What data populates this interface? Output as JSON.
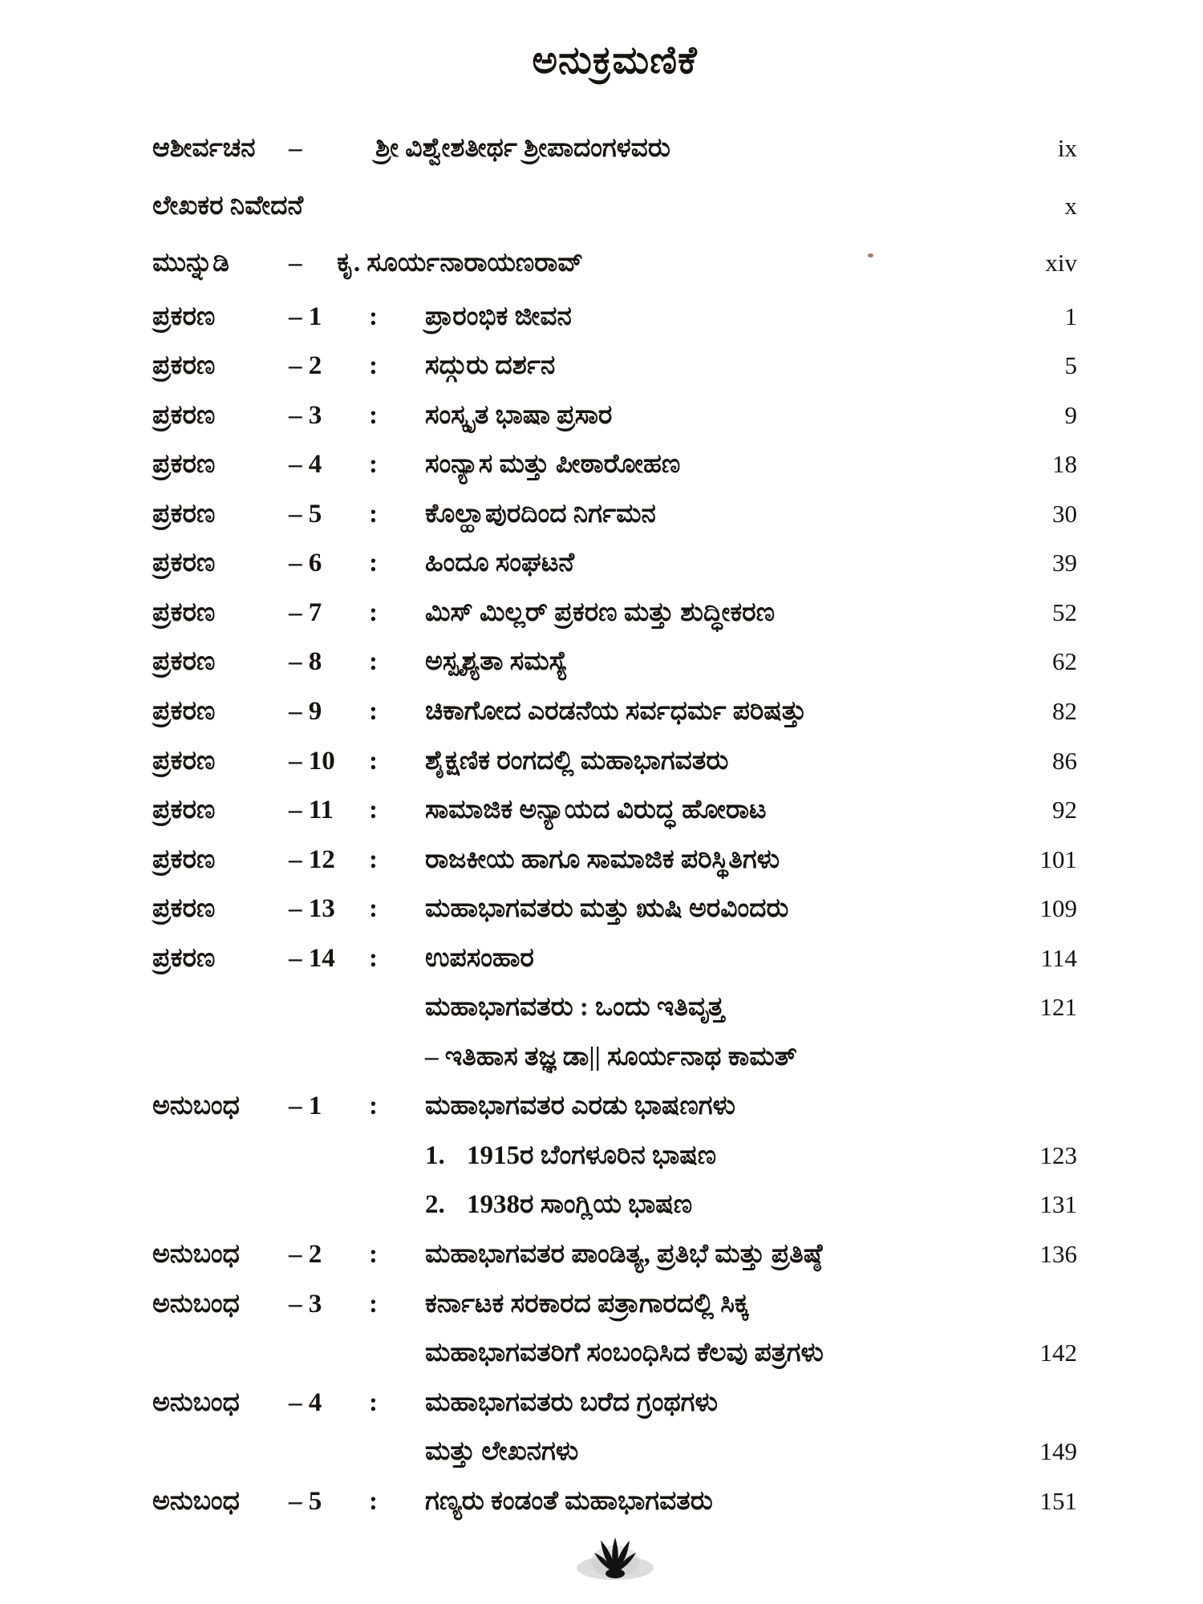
{
  "page": {
    "title": "ಅನುಕ್ರಮಣಿಕೆ"
  },
  "icons": {
    "bottom_ornament": "lotus-flower-ornament"
  },
  "colors": {
    "ink": "#17130f",
    "paper": "#ffffff"
  },
  "toc": {
    "rows": [
      {
        "style": "front-wide",
        "label": "ಆಶೀರ್ವಚನ",
        "num": "–",
        "title": "ಶ್ರೀ ವಿಶ್ವೇಶತೀರ್ಥ ಶ್ರೀಪಾದಂಗಳವರು",
        "page": "ix"
      },
      {
        "style": "plain",
        "label": "ಲೇಖಕರ ನಿವೇದನೆ",
        "page": "x"
      },
      {
        "style": "front",
        "label": "ಮುನ್ನುಡಿ",
        "num": "–",
        "title": "ಕೃ. ಸೂರ್ಯನಾರಾಯಣರಾವ್",
        "page": "xiv"
      },
      {
        "style": "chapter",
        "label": "ಪ್ರಕರಣ",
        "num": "– 1",
        "colon": ":",
        "title": "ಪ್ರಾರಂಭಿಕ ಜೀವನ",
        "page": "1"
      },
      {
        "style": "chapter",
        "label": "ಪ್ರಕರಣ",
        "num": "– 2",
        "colon": ":",
        "title": "ಸದ್ಗುರು ದರ್ಶನ",
        "page": "5"
      },
      {
        "style": "chapter",
        "label": "ಪ್ರಕರಣ",
        "num": "– 3",
        "colon": ":",
        "title": "ಸಂಸ್ಕೃತ ಭಾಷಾ ಪ್ರಸಾರ",
        "page": "9"
      },
      {
        "style": "chapter",
        "label": "ಪ್ರಕರಣ",
        "num": "– 4",
        "colon": ":",
        "title": "ಸಂನ್ಯಾಸ ಮತ್ತು ಪೀಠಾರೋಹಣ",
        "page": "18"
      },
      {
        "style": "chapter",
        "label": "ಪ್ರಕರಣ",
        "num": "– 5",
        "colon": ":",
        "title": "ಕೊಲ್ಹಾಪುರದಿಂದ ನಿರ್ಗಮನ",
        "page": "30"
      },
      {
        "style": "chapter",
        "label": "ಪ್ರಕರಣ",
        "num": "– 6",
        "colon": ":",
        "title": "ಹಿಂದೂ ಸಂಘಟನೆ",
        "page": "39"
      },
      {
        "style": "chapter",
        "label": "ಪ್ರಕರಣ",
        "num": "– 7",
        "colon": ":",
        "title": "ಮಿಸ್ ಮಿಲ್ಲರ್ ಪ್ರಕರಣ ಮತ್ತು ಶುದ್ಧೀಕರಣ",
        "page": "52"
      },
      {
        "style": "chapter",
        "label": "ಪ್ರಕರಣ",
        "num": "– 8",
        "colon": ":",
        "title": "ಅಸ್ಪೃಶ್ಯತಾ ಸಮಸ್ಯೆ",
        "page": "62"
      },
      {
        "style": "chapter",
        "label": "ಪ್ರಕರಣ",
        "num": "– 9",
        "colon": ":",
        "title": "ಚಿಕಾಗೋದ ಎರಡನೆಯ ಸರ್ವಧರ್ಮ ಪರಿಷತ್ತು",
        "page": "82"
      },
      {
        "style": "chapter",
        "label": "ಪ್ರಕರಣ",
        "num": "– 10",
        "colon": ":",
        "title": "ಶೈಕ್ಷಣಿಕ ರಂಗದಲ್ಲಿ ಮಹಾಭಾಗವತರು",
        "page": "86"
      },
      {
        "style": "chapter",
        "label": "ಪ್ರಕರಣ",
        "num": "– 11",
        "colon": ":",
        "title": "ಸಾಮಾಜಿಕ ಅನ್ಯಾಯದ ವಿರುದ್ಧ ಹೋರಾಟ",
        "page": "92"
      },
      {
        "style": "chapter",
        "label": "ಪ್ರಕರಣ",
        "num": "– 12",
        "colon": ":",
        "title": "ರಾಜಕೀಯ ಹಾಗೂ ಸಾಮಾಜಿಕ ಪರಿಸ್ಥಿತಿಗಳು",
        "page": "101"
      },
      {
        "style": "chapter",
        "label": "ಪ್ರಕರಣ",
        "num": "– 13",
        "colon": ":",
        "title": "ಮಹಾಭಾಗವತರು ಮತ್ತು ಋಷಿ ಅರವಿಂದರು",
        "page": "109"
      },
      {
        "style": "chapter",
        "label": "ಪ್ರಕರಣ",
        "num": "– 14",
        "colon": ":",
        "title": "ಉಪಸಂಹಾರ",
        "page": "114"
      },
      {
        "style": "cont",
        "title": "ಮಹಾಭಾಗವತರು : ಒಂದು ಇತಿವೃತ್ತ",
        "page": "121"
      },
      {
        "style": "cont",
        "title": "– ಇತಿಹಾಸ ತಜ್ಞ ಡಾ|| ಸೂರ್ಯನಾಥ ಕಾಮತ್",
        "page": ""
      },
      {
        "style": "chapter",
        "label": "ಅನುಬಂಧ",
        "num": "– 1",
        "colon": ":",
        "title": "ಮಹಾಭಾಗವತರ ಎರಡು ಭಾಷಣಗಳು",
        "page": ""
      },
      {
        "style": "sub",
        "num": "1.",
        "title": "1915ರ ಬೆಂಗಳೂರಿನ ಭಾಷಣ",
        "page": "123"
      },
      {
        "style": "sub",
        "num": "2.",
        "title": "1938ರ ಸಾಂಗ್ಲಿಯ ಭಾಷಣ",
        "page": "131"
      },
      {
        "style": "chapter",
        "label": "ಅನುಬಂಧ",
        "num": "– 2",
        "colon": ":",
        "title": "ಮಹಾಭಾಗವತರ ಪಾಂಡಿತ್ಯ, ಪ್ರತಿಭೆ ಮತ್ತು ಪ್ರತಿಷ್ಠೆ",
        "page": "136"
      },
      {
        "style": "chapter",
        "label": "ಅನುಬಂಧ",
        "num": "– 3",
        "colon": ":",
        "title": "ಕರ್ನಾಟಕ ಸರಕಾರದ ಪತ್ರಾಗಾರದಲ್ಲಿ ಸಿಕ್ಕ",
        "page": ""
      },
      {
        "style": "cont",
        "title": "ಮಹಾಭಾಗವತರಿಗೆ ಸಂಬಂಧಿಸಿದ ಕೆಲವು ಪತ್ರಗಳು",
        "page": "142"
      },
      {
        "style": "chapter",
        "label": "ಅನುಬಂಧ",
        "num": "– 4",
        "colon": ":",
        "title": "ಮಹಾಭಾಗವತರು ಬರೆದ ಗ್ರಂಥಗಳು",
        "page": ""
      },
      {
        "style": "cont",
        "title": "ಮತ್ತು ಲೇಖನಗಳು",
        "page": "149"
      },
      {
        "style": "chapter",
        "label": "ಅನುಬಂಧ",
        "num": "– 5",
        "colon": ":",
        "title": "ಗಣ್ಯರು ಕಂಡಂತೆ ಮಹಾಭಾಗವತರು",
        "page": "151"
      }
    ]
  }
}
